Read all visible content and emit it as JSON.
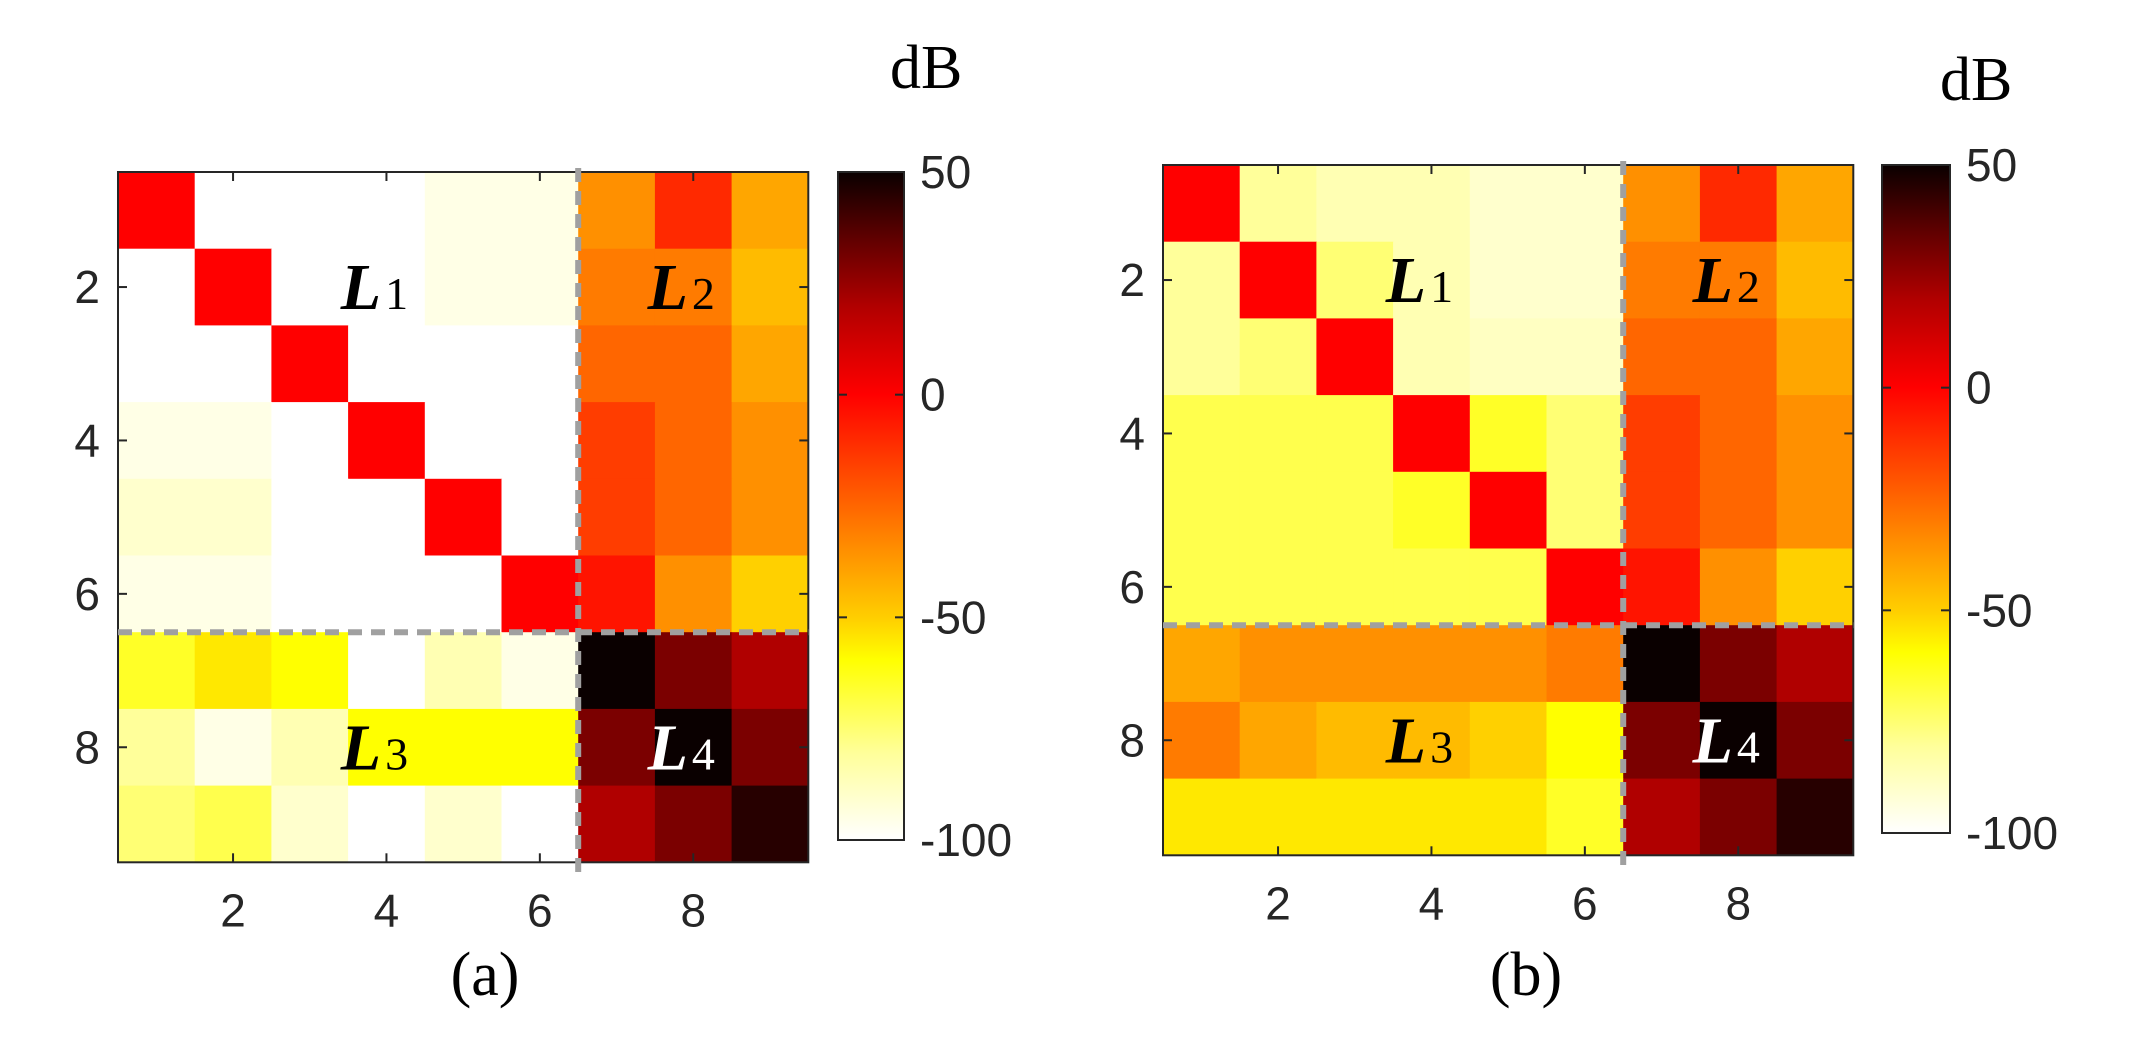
{
  "chart_data": [
    {
      "type": "heatmap",
      "caption": "(a)",
      "colorbar_unit": "dB",
      "colorbar_range": [
        -100,
        50
      ],
      "colorbar_ticks": [
        50,
        0,
        -50,
        -100
      ],
      "colormap": "hot (reversed)",
      "x_ticks": [
        2,
        4,
        6,
        8
      ],
      "y_ticks": [
        2,
        4,
        6,
        8
      ],
      "size": 9,
      "partition_after": 6,
      "divider_color": "#a0a0a0",
      "region_labels": [
        {
          "main": "L",
          "sub": "1",
          "row": 2,
          "col": 4,
          "color": "#000000"
        },
        {
          "main": "L",
          "sub": "2",
          "row": 2,
          "col": 8,
          "color": "#000000"
        },
        {
          "main": "L",
          "sub": "3",
          "row": 8,
          "col": 4,
          "color": "#000000"
        },
        {
          "main": "L",
          "sub": "4",
          "row": 8,
          "col": 8,
          "color": "#ffffff"
        }
      ],
      "values": [
        [
          0,
          -100,
          -100,
          -100,
          -95,
          -95,
          -35,
          -10,
          -40
        ],
        [
          -100,
          0,
          -100,
          -100,
          -95,
          -95,
          -30,
          -30,
          -45
        ],
        [
          -100,
          -100,
          0,
          -100,
          -100,
          -100,
          -25,
          -25,
          -40
        ],
        [
          -95,
          -95,
          -100,
          0,
          -100,
          -100,
          -15,
          -25,
          -35
        ],
        [
          -90,
          -90,
          -100,
          -100,
          0,
          -100,
          -15,
          -25,
          -35
        ],
        [
          -95,
          -95,
          -100,
          -100,
          -100,
          0,
          -5,
          -35,
          -50
        ],
        [
          -65,
          -55,
          -60,
          -100,
          -85,
          -95,
          50,
          30,
          20
        ],
        [
          -80,
          -95,
          -85,
          -60,
          -60,
          -60,
          30,
          50,
          30
        ],
        [
          -75,
          -70,
          -90,
          -100,
          -90,
          -100,
          20,
          30,
          45
        ]
      ]
    },
    {
      "type": "heatmap",
      "caption": "(b)",
      "colorbar_unit": "dB",
      "colorbar_range": [
        -100,
        50
      ],
      "colorbar_ticks": [
        50,
        0,
        -50,
        -100
      ],
      "colormap": "hot (reversed)",
      "x_ticks": [
        2,
        4,
        6,
        8
      ],
      "y_ticks": [
        2,
        4,
        6,
        8
      ],
      "size": 9,
      "partition_after": 6,
      "divider_color": "#a0a0a0",
      "region_labels": [
        {
          "main": "L",
          "sub": "1",
          "row": 2,
          "col": 4,
          "color": "#000000"
        },
        {
          "main": "L",
          "sub": "2",
          "row": 2,
          "col": 8,
          "color": "#000000"
        },
        {
          "main": "L",
          "sub": "3",
          "row": 8,
          "col": 4,
          "color": "#000000"
        },
        {
          "main": "L",
          "sub": "4",
          "row": 8,
          "col": 8,
          "color": "#ffffff"
        }
      ],
      "values": [
        [
          0,
          -80,
          -85,
          -85,
          -90,
          -90,
          -35,
          -10,
          -40
        ],
        [
          -80,
          0,
          -75,
          -85,
          -90,
          -90,
          -30,
          -30,
          -45
        ],
        [
          -80,
          -75,
          0,
          -85,
          -88,
          -88,
          -25,
          -25,
          -40
        ],
        [
          -70,
          -70,
          -70,
          0,
          -65,
          -75,
          -15,
          -25,
          -35
        ],
        [
          -70,
          -70,
          -70,
          -65,
          0,
          -75,
          -15,
          -25,
          -35
        ],
        [
          -70,
          -70,
          -70,
          -70,
          -70,
          0,
          -5,
          -35,
          -50
        ],
        [
          -40,
          -35,
          -35,
          -35,
          -35,
          -30,
          50,
          30,
          20
        ],
        [
          -30,
          -40,
          -45,
          -45,
          -50,
          -60,
          30,
          50,
          30
        ],
        [
          -55,
          -55,
          -55,
          -55,
          -55,
          -65,
          20,
          30,
          45
        ]
      ]
    }
  ]
}
